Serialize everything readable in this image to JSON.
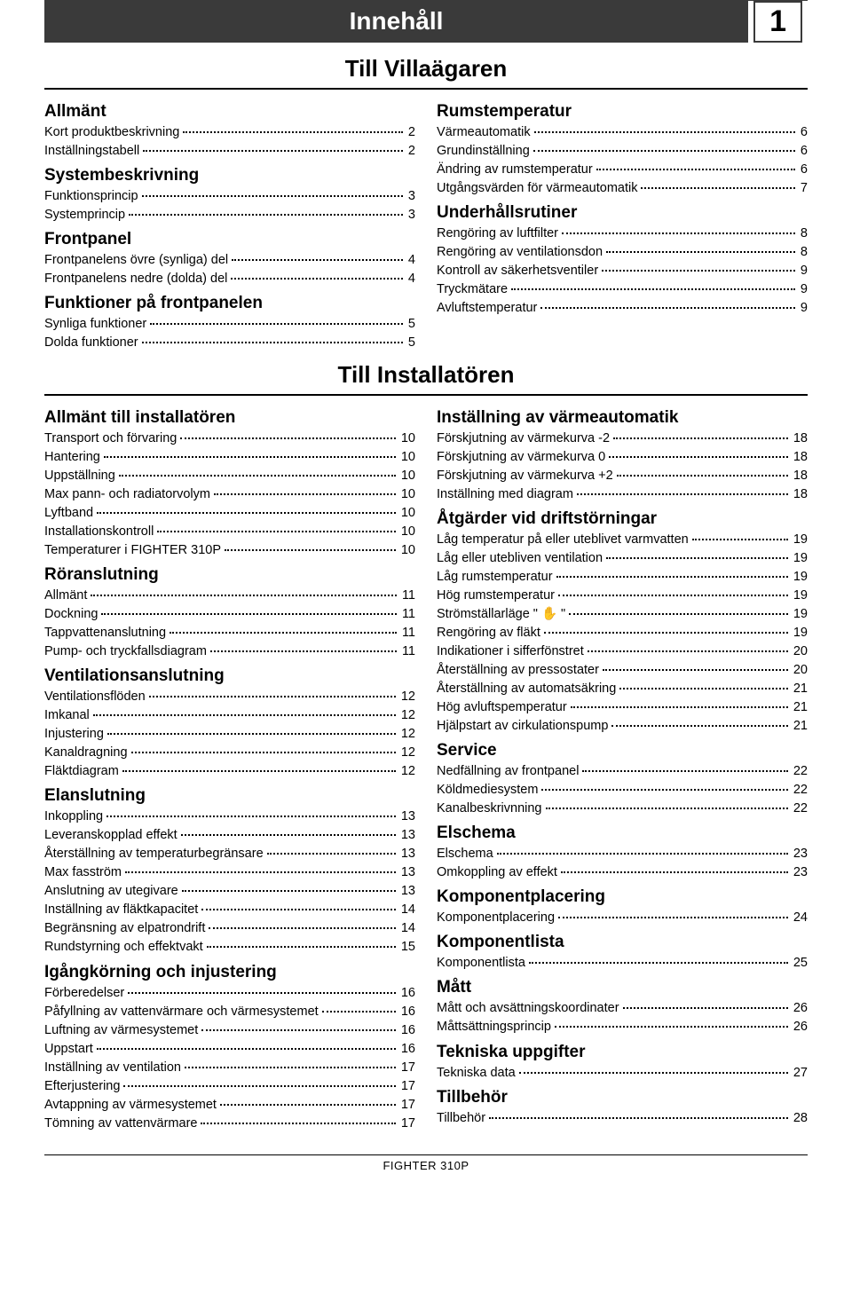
{
  "header": {
    "title": "Innehåll",
    "page_number": "1"
  },
  "section1": {
    "title": "Till Villaägaren",
    "left": [
      {
        "cat": "Allmänt",
        "items": [
          {
            "t": "Kort produktbeskrivning",
            "p": "2"
          },
          {
            "t": "Inställningstabell",
            "p": "2"
          }
        ]
      },
      {
        "cat": "Systembeskrivning",
        "items": [
          {
            "t": "Funktionsprincip",
            "p": "3"
          },
          {
            "t": "Systemprincip",
            "p": "3"
          }
        ]
      },
      {
        "cat": "Frontpanel",
        "items": [
          {
            "t": "Frontpanelens övre (synliga) del",
            "p": "4"
          },
          {
            "t": "Frontpanelens nedre (dolda) del",
            "p": "4"
          }
        ]
      },
      {
        "cat": "Funktioner på frontpanelen",
        "items": [
          {
            "t": "Synliga funktioner",
            "p": "5"
          },
          {
            "t": "Dolda funktioner",
            "p": "5"
          }
        ]
      }
    ],
    "right": [
      {
        "cat": "Rumstemperatur",
        "items": [
          {
            "t": "Värmeautomatik",
            "p": "6"
          },
          {
            "t": "Grundinställning",
            "p": "6"
          },
          {
            "t": "Ändring av rumstemperatur",
            "p": "6"
          },
          {
            "t": "Utgångsvärden för värmeautomatik",
            "p": "7"
          }
        ]
      },
      {
        "cat": "Underhållsrutiner",
        "items": [
          {
            "t": "Rengöring av luftfilter",
            "p": "8"
          },
          {
            "t": "Rengöring av ventilationsdon",
            "p": "8"
          },
          {
            "t": "Kontroll av säkerhetsventiler",
            "p": "9"
          },
          {
            "t": "Tryckmätare",
            "p": "9"
          },
          {
            "t": "Avluftstemperatur",
            "p": "9"
          }
        ]
      }
    ]
  },
  "section2": {
    "title": "Till Installatören",
    "left": [
      {
        "cat": "Allmänt till installatören",
        "items": [
          {
            "t": "Transport och förvaring",
            "p": "10"
          },
          {
            "t": "Hantering",
            "p": "10"
          },
          {
            "t": "Uppställning",
            "p": "10"
          },
          {
            "t": "Max pann- och radiatorvolym",
            "p": "10"
          },
          {
            "t": "Lyftband",
            "p": "10"
          },
          {
            "t": "Installationskontroll",
            "p": "10"
          },
          {
            "t": "Temperaturer i FIGHTER 310P",
            "p": "10"
          }
        ]
      },
      {
        "cat": "Röranslutning",
        "items": [
          {
            "t": "Allmänt",
            "p": "11"
          },
          {
            "t": "Dockning",
            "p": "11"
          },
          {
            "t": "Tappvattenanslutning",
            "p": "11"
          },
          {
            "t": "Pump- och tryckfallsdiagram",
            "p": "11"
          }
        ]
      },
      {
        "cat": "Ventilationsanslutning",
        "items": [
          {
            "t": "Ventilationsflöden",
            "p": "12"
          },
          {
            "t": "Imkanal",
            "p": "12"
          },
          {
            "t": "Injustering",
            "p": "12"
          },
          {
            "t": "Kanaldragning",
            "p": "12"
          },
          {
            "t": "Fläktdiagram",
            "p": "12"
          }
        ]
      },
      {
        "cat": "Elanslutning",
        "items": [
          {
            "t": "Inkoppling",
            "p": "13"
          },
          {
            "t": "Leveranskopplad effekt",
            "p": "13"
          },
          {
            "t": "Återställning av temperaturbegränsare",
            "p": "13"
          },
          {
            "t": "Max fasström",
            "p": "13"
          },
          {
            "t": "Anslutning av utegivare",
            "p": "13"
          },
          {
            "t": "Inställning av fläktkapacitet",
            "p": "14"
          },
          {
            "t": "Begränsning av elpatrondrift",
            "p": "14"
          },
          {
            "t": "Rundstyrning och effektvakt",
            "p": "15"
          }
        ]
      },
      {
        "cat": "Igångkörning och injustering",
        "items": [
          {
            "t": "Förberedelser",
            "p": "16"
          },
          {
            "t": "Påfyllning av vattenvärmare och värmesystemet",
            "p": "16"
          },
          {
            "t": "Luftning av värmesystemet",
            "p": "16"
          },
          {
            "t": "Uppstart",
            "p": "16"
          },
          {
            "t": "Inställning av ventilation",
            "p": "17"
          },
          {
            "t": "Efterjustering",
            "p": "17"
          },
          {
            "t": "Avtappning av värmesystemet",
            "p": "17"
          },
          {
            "t": "Tömning av vattenvärmare",
            "p": "17"
          }
        ]
      }
    ],
    "right": [
      {
        "cat": "Inställning av värmeautomatik",
        "items": [
          {
            "t": "Förskjutning av värmekurva -2",
            "p": "18"
          },
          {
            "t": "Förskjutning av värmekurva 0",
            "p": "18"
          },
          {
            "t": "Förskjutning av värmekurva +2",
            "p": "18"
          },
          {
            "t": "Inställning med diagram",
            "p": "18"
          }
        ]
      },
      {
        "cat": "Åtgärder vid driftstörningar",
        "items": [
          {
            "t": "Låg temperatur på eller uteblivet varmvatten",
            "p": "19"
          },
          {
            "t": "Låg eller utebliven ventilation",
            "p": "19"
          },
          {
            "t": "Låg rumstemperatur",
            "p": "19"
          },
          {
            "t": "Hög rumstemperatur",
            "p": "19"
          },
          {
            "t": "Strömställarläge \" ✋ \"",
            "p": "19"
          },
          {
            "t": "Rengöring av fläkt",
            "p": "19"
          },
          {
            "t": "Indikationer i sifferfönstret",
            "p": "20"
          },
          {
            "t": "Återställning av pressostater",
            "p": "20"
          },
          {
            "t": "Återställning av automatsäkring",
            "p": "21"
          },
          {
            "t": "Hög avluftspemperatur",
            "p": "21"
          },
          {
            "t": "Hjälpstart av cirkulationspump",
            "p": "21"
          }
        ]
      },
      {
        "cat": "Service",
        "items": [
          {
            "t": "Nedfällning av frontpanel",
            "p": "22"
          },
          {
            "t": "Köldmediesystem",
            "p": "22"
          },
          {
            "t": "Kanalbeskrivnning",
            "p": "22"
          }
        ]
      },
      {
        "cat": "Elschema",
        "items": [
          {
            "t": "Elschema",
            "p": "23"
          },
          {
            "t": "Omkoppling av effekt",
            "p": "23"
          }
        ]
      },
      {
        "cat": "Komponentplacering",
        "items": [
          {
            "t": "Komponentplacering",
            "p": "24"
          }
        ]
      },
      {
        "cat": "Komponentlista",
        "items": [
          {
            "t": "Komponentlista",
            "p": "25"
          }
        ]
      },
      {
        "cat": "Mått",
        "items": [
          {
            "t": "Mått och avsättningskoordinater",
            "p": "26"
          },
          {
            "t": "Måttsättningsprincip",
            "p": "26"
          }
        ]
      },
      {
        "cat": "Tekniska uppgifter",
        "items": [
          {
            "t": "Tekniska data",
            "p": "27"
          }
        ]
      },
      {
        "cat": "Tillbehör",
        "items": [
          {
            "t": "Tillbehör",
            "p": "28"
          }
        ]
      }
    ]
  },
  "footer": "FIGHTER 310P"
}
